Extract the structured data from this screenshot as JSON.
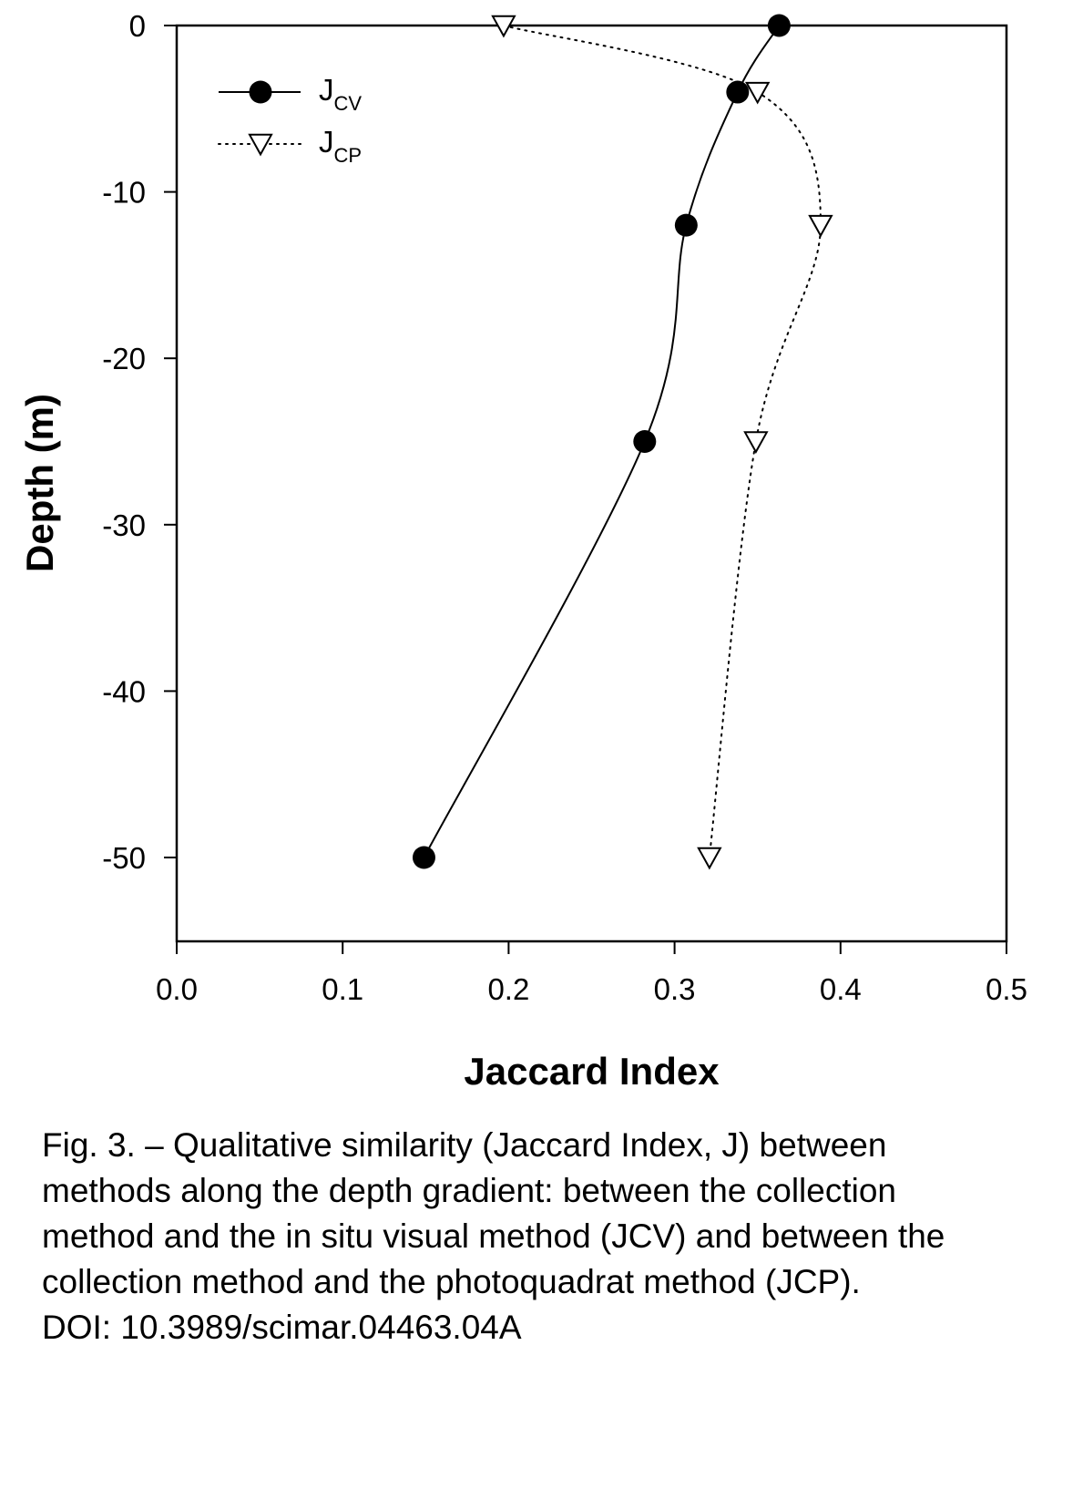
{
  "chart_data": {
    "type": "line",
    "xlabel": "Jaccard Index",
    "ylabel": "Depth (m)",
    "xlim": [
      0.0,
      0.5
    ],
    "ylim": [
      -55,
      0
    ],
    "x_ticks": [
      "0.0",
      "0.1",
      "0.2",
      "0.3",
      "0.4",
      "0.5"
    ],
    "y_ticks": [
      "0",
      "-10",
      "-20",
      "-30",
      "-40",
      "-50"
    ],
    "grid": false,
    "legend_position": "top-left",
    "series": [
      {
        "name": "J",
        "subscript": "CV",
        "marker": "filled-circle",
        "line_style": "solid",
        "points": [
          {
            "x": 0.363,
            "y": 0
          },
          {
            "x": 0.338,
            "y": -4
          },
          {
            "x": 0.307,
            "y": -12
          },
          {
            "x": 0.282,
            "y": -25
          },
          {
            "x": 0.149,
            "y": -50
          }
        ]
      },
      {
        "name": "J",
        "subscript": "CP",
        "marker": "open-down-triangle",
        "line_style": "dotted",
        "points": [
          {
            "x": 0.197,
            "y": 0
          },
          {
            "x": 0.35,
            "y": -4
          },
          {
            "x": 0.388,
            "y": -12
          },
          {
            "x": 0.349,
            "y": -25
          },
          {
            "x": 0.321,
            "y": -50
          }
        ]
      }
    ],
    "colors": {
      "line": "#000000",
      "background": "#ffffff"
    }
  },
  "caption": {
    "lines": [
      "Fig. 3. – Qualitative similarity (Jaccard Index, J) between",
      "methods along the depth gradient: between the collection",
      "method and the in situ visual method (JCV) and between the",
      "collection method and the photoquadrat method (JCP).",
      "DOI: 10.3989/scimar.04463.04A"
    ]
  }
}
